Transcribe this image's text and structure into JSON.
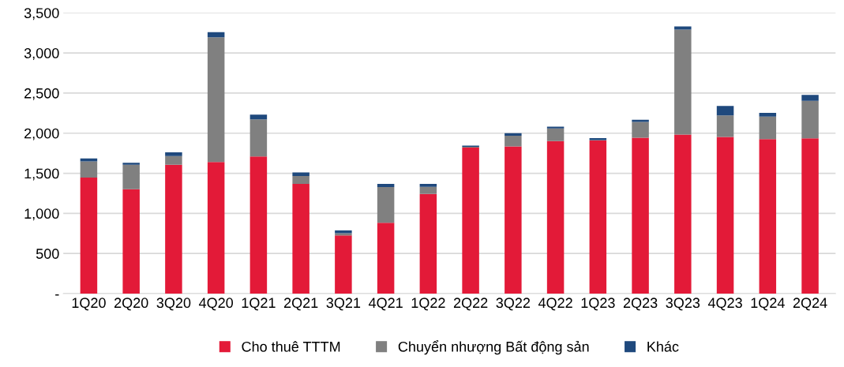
{
  "chart_data": {
    "type": "bar",
    "stacked": true,
    "categories": [
      "1Q20",
      "2Q20",
      "3Q20",
      "4Q20",
      "1Q21",
      "2Q21",
      "3Q21",
      "4Q21",
      "1Q22",
      "2Q22",
      "3Q22",
      "4Q22",
      "1Q23",
      "2Q23",
      "3Q23",
      "4Q23",
      "1Q24",
      "2Q24"
    ],
    "series": [
      {
        "name": "Cho thuê TTTM",
        "color": "#e31a38",
        "values": [
          1447,
          1300,
          1605,
          1640,
          1710,
          1368,
          725,
          884,
          1242,
          1819,
          1835,
          1902,
          1909,
          1942,
          1983,
          1953,
          1926,
          1936
        ]
      },
      {
        "name": "Chuyển nhượng Bất động sản",
        "color": "#808080",
        "values": [
          202,
          305,
          110,
          1555,
          462,
          99,
          27,
          444,
          89,
          10,
          134,
          158,
          5,
          198,
          1307,
          267,
          281,
          468
        ]
      },
      {
        "name": "Khác",
        "color": "#1f497d",
        "values": [
          36,
          27,
          47,
          63,
          60,
          43,
          36,
          40,
          37,
          17,
          30,
          20,
          25,
          26,
          40,
          120,
          46,
          73
        ]
      }
    ],
    "ylim": [
      0,
      3500
    ],
    "yticks": [
      {
        "value": 0,
        "label": "-"
      },
      {
        "value": 500,
        "label": "500"
      },
      {
        "value": 1000,
        "label": "1,000"
      },
      {
        "value": 1500,
        "label": "1,500"
      },
      {
        "value": 2000,
        "label": "2,000"
      },
      {
        "value": 2500,
        "label": "2,500"
      },
      {
        "value": 3000,
        "label": "3,000"
      },
      {
        "value": 3500,
        "label": "3,500"
      }
    ],
    "grid": "y",
    "legend": "bottom"
  }
}
